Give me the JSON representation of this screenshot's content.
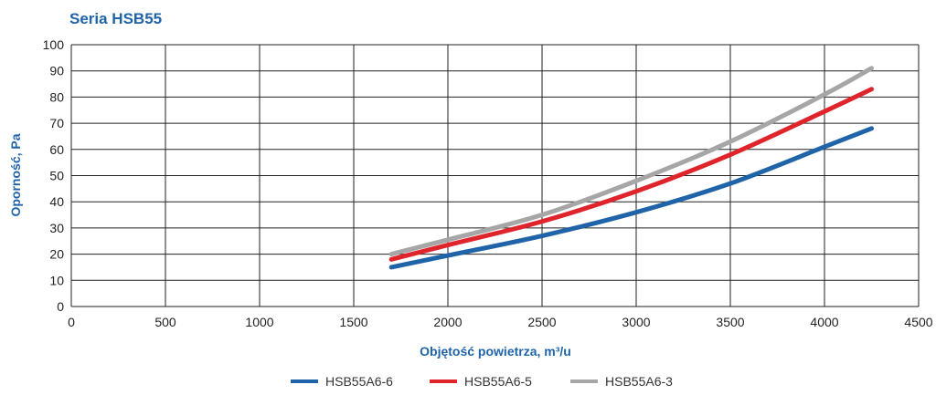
{
  "chart_data": {
    "type": "line",
    "title": "Seria HSB55",
    "xlabel": "Objętość powietrza, m³/u",
    "ylabel": "Oporność, Pa",
    "xlim": [
      0,
      4500
    ],
    "ylim": [
      0,
      100
    ],
    "x_ticks": [
      0,
      500,
      1000,
      1500,
      2000,
      2500,
      3000,
      3500,
      4000,
      4500
    ],
    "y_ticks": [
      0,
      10,
      20,
      30,
      40,
      50,
      60,
      70,
      80,
      90,
      100
    ],
    "grid": true,
    "legend_position": "bottom",
    "series": [
      {
        "name": "HSB55A6-6",
        "color": "#1f63a8",
        "x": [
          1700,
          2000,
          2500,
          3000,
          3500,
          4000,
          4250
        ],
        "y": [
          15,
          19.5,
          27,
          36,
          47,
          61,
          68
        ]
      },
      {
        "name": "HSB55A6-5",
        "color": "#e0242b",
        "x": [
          1700,
          2000,
          2500,
          3000,
          3500,
          4000,
          4250
        ],
        "y": [
          18,
          23.5,
          32.5,
          44,
          58,
          74.5,
          83
        ]
      },
      {
        "name": "HSB55A6-3",
        "color": "#a6a6a6",
        "x": [
          1700,
          2000,
          2500,
          3000,
          3500,
          4000,
          4250
        ],
        "y": [
          20,
          25.5,
          35,
          48,
          63,
          81,
          91
        ]
      }
    ]
  },
  "colors": {
    "title": "#1f63a8",
    "axis_label": "#1f63a8",
    "grid": "#222222"
  }
}
